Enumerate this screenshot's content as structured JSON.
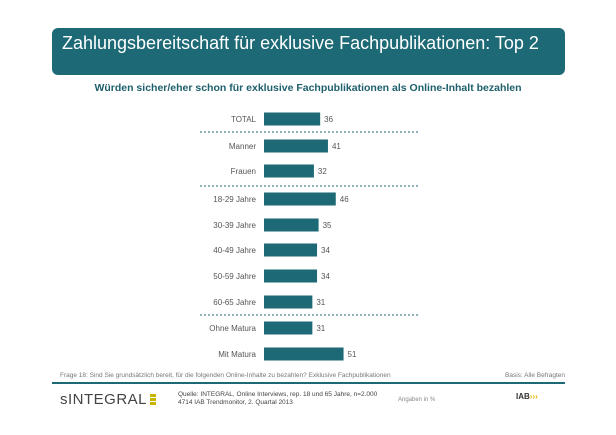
{
  "title": "Zahlungsbereitschaft für exklusive Fachpublikationen: Top 2",
  "chart_data": {
    "type": "bar",
    "orientation": "horizontal",
    "title": "Würden sicher/eher schon für exklusive Fachpublikationen als Online-Inhalt bezahlen",
    "categories": [
      "TOTAL",
      "Manner",
      "Frauen",
      "18-29 Jahre",
      "30-39 Jahre",
      "40-49 Jahre",
      "50-59 Jahre",
      "60-65 Jahre",
      "Ohne Matura",
      "Mit Matura"
    ],
    "values": [
      36,
      41,
      32,
      46,
      35,
      34,
      34,
      31,
      31,
      51
    ],
    "unit": "%",
    "color": "#1d6a76"
  },
  "footer": {
    "question": "Frage 18: Sind Sie grundsätzlich bereit, für die folgenden Online-Inhalte zu bezahlen? Exklusive Fachpublikationen",
    "basis": "Basis: Alle Befragten",
    "logo": "INTEGRAL",
    "source1": "Quelle: INTEGRAL, Online Interviews, rep. 18 und 65 Jahre, n=2.000",
    "source2": "4714 IAB Trendmonitor, 2. Quartal 2013",
    "units": "Angaben in %",
    "iab_logo": "IAB"
  }
}
